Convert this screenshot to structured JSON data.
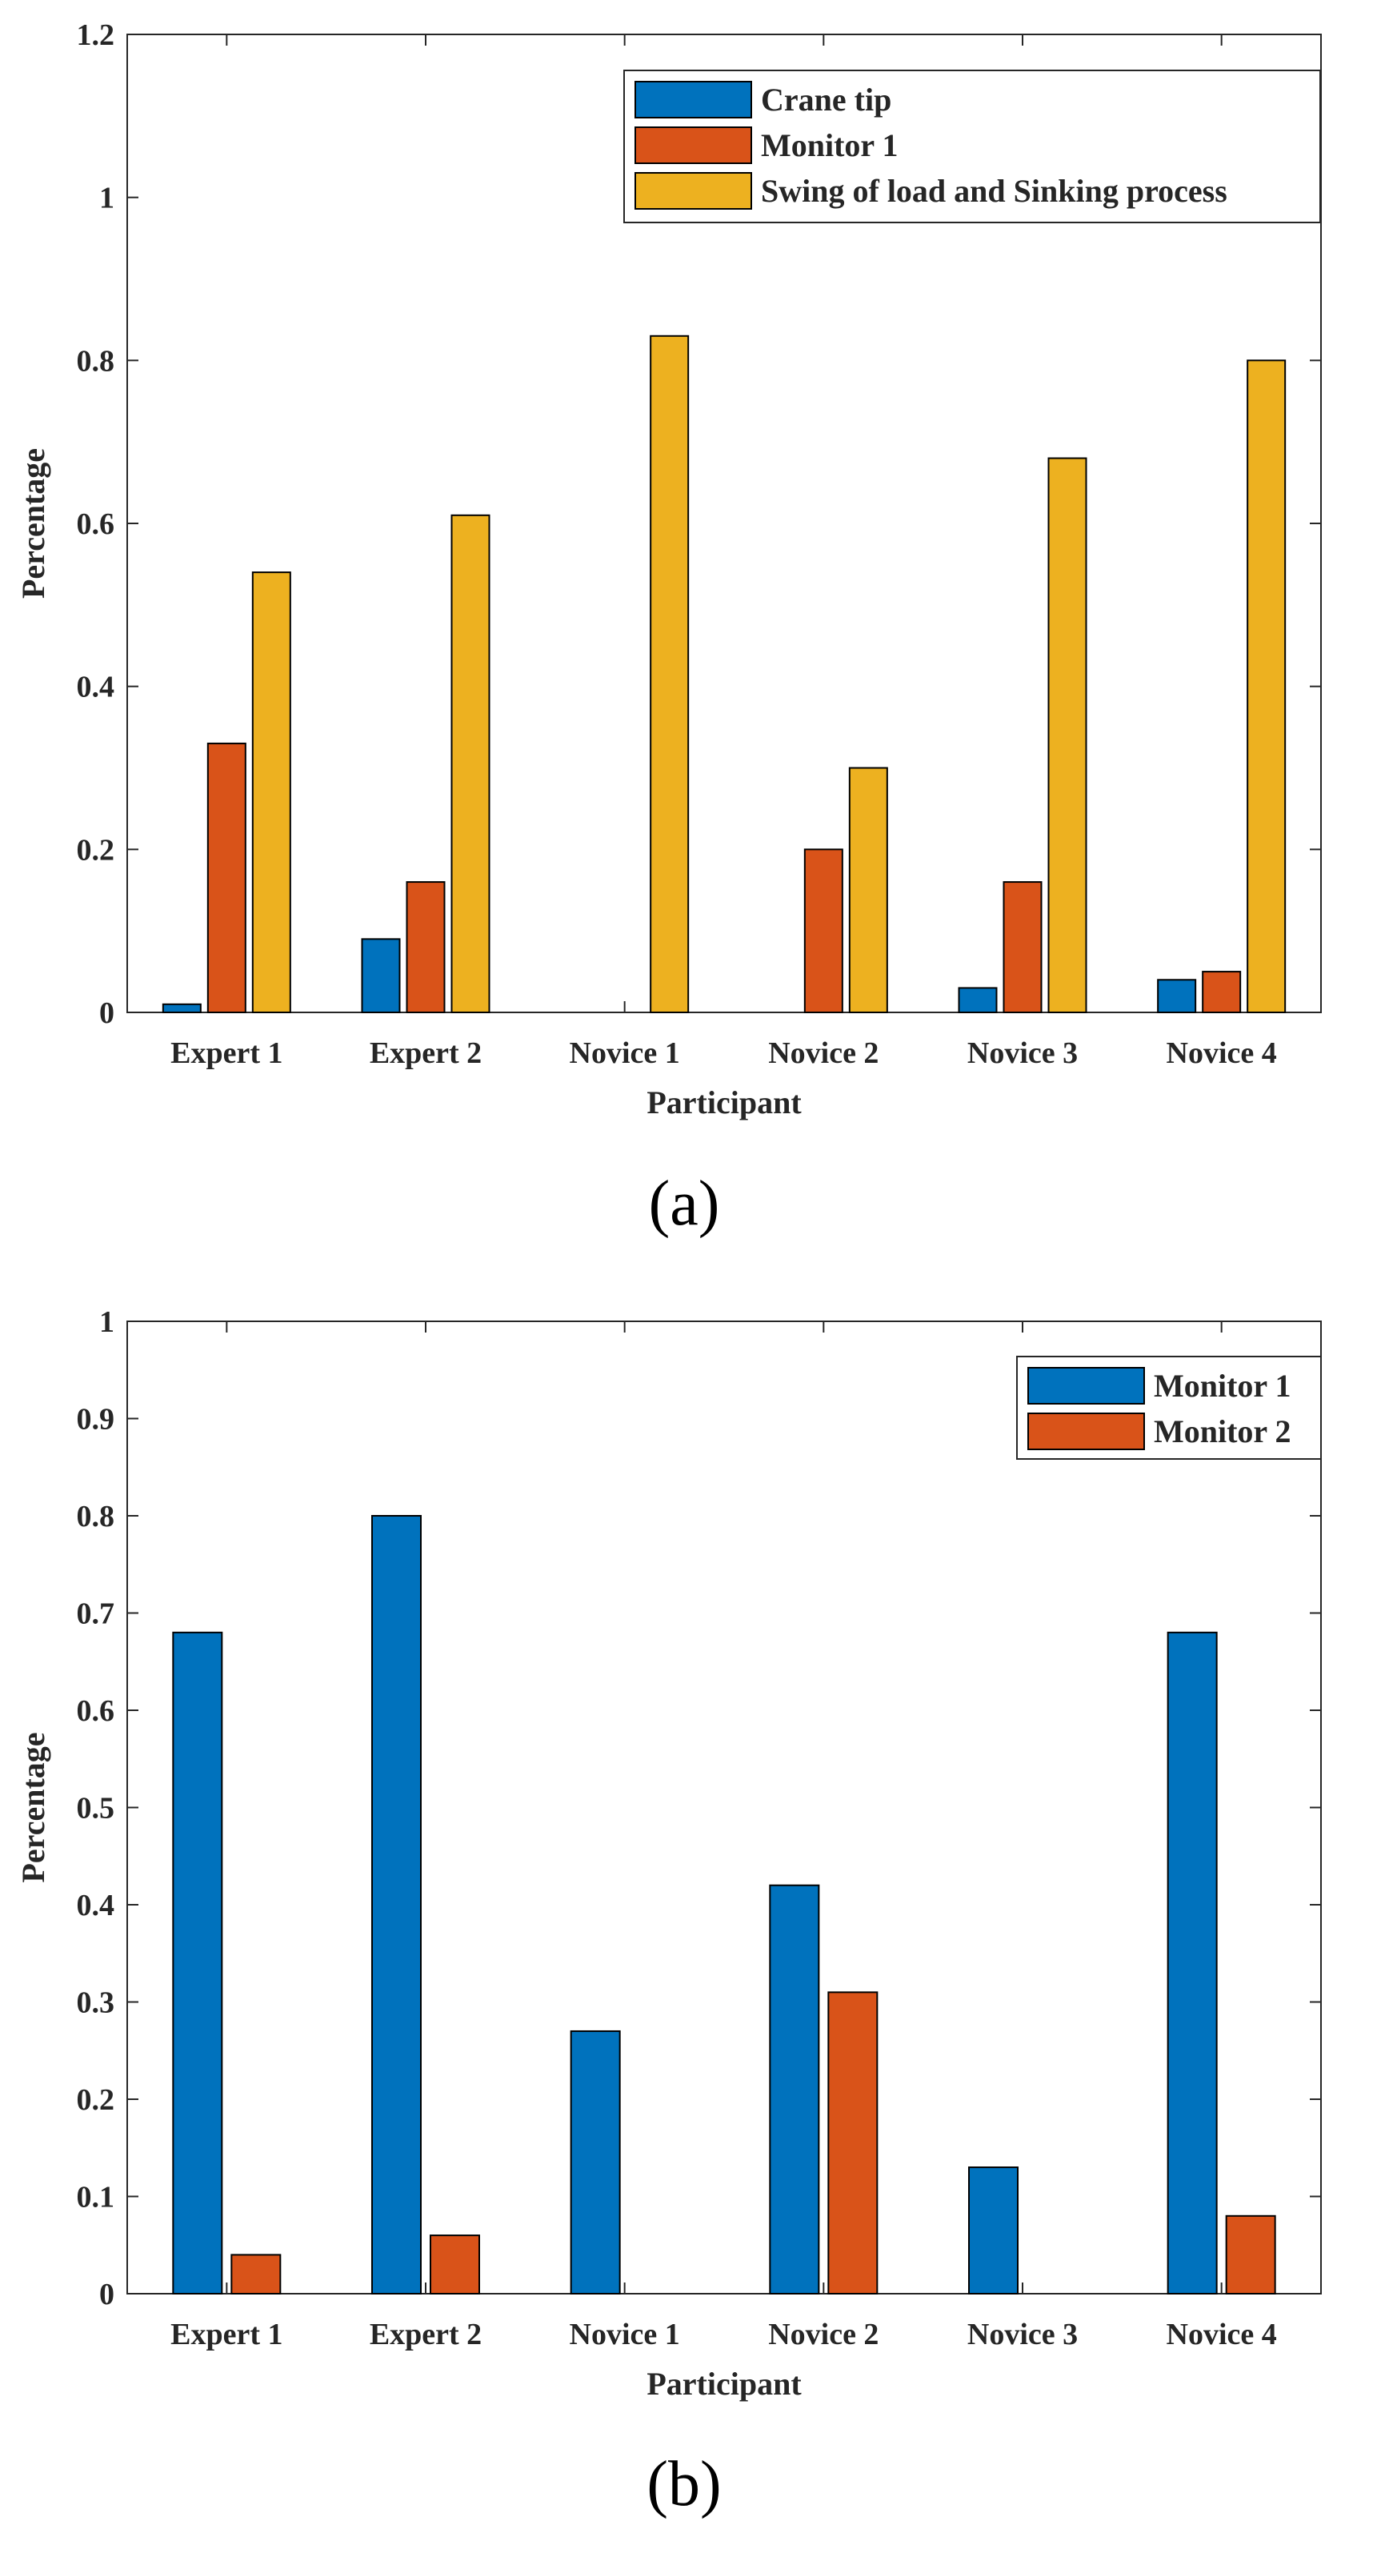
{
  "chart_data": [
    {
      "type": "bar",
      "caption": "(a)",
      "categories": [
        "Expert 1",
        "Expert 2",
        "Novice 1",
        "Novice 2",
        "Novice 3",
        "Novice 4"
      ],
      "series": [
        {
          "name": "Crane tip",
          "color": "#0072BD",
          "values": [
            0.01,
            0.09,
            0,
            0,
            0.03,
            0.04
          ]
        },
        {
          "name": "Monitor 1",
          "color": "#D95319",
          "values": [
            0.33,
            0.16,
            0,
            0.2,
            0.16,
            0.05
          ]
        },
        {
          "name": "Swing of load and Sinking process",
          "color": "#EDB120",
          "values": [
            0.54,
            0.61,
            0.83,
            0.3,
            0.68,
            0.8
          ]
        }
      ],
      "xlabel": "Participant",
      "ylabel": "Percentage",
      "ylim": [
        0,
        1.2
      ],
      "yticks": [
        0,
        0.2,
        0.4,
        0.6,
        0.8,
        1,
        1.2
      ],
      "ytick_labels": [
        "0",
        "0.2",
        "0.4",
        "0.6",
        "0.8",
        "1",
        "1.2"
      ],
      "legend": "top-right",
      "grid": false
    },
    {
      "type": "bar",
      "caption": "(b)",
      "categories": [
        "Expert 1",
        "Expert 2",
        "Novice 1",
        "Novice 2",
        "Novice 3",
        "Novice 4"
      ],
      "series": [
        {
          "name": "Monitor 1",
          "color": "#0072BD",
          "values": [
            0.68,
            0.8,
            0.27,
            0.42,
            0.13,
            0.68
          ]
        },
        {
          "name": "Monitor 2",
          "color": "#D95319",
          "values": [
            0.04,
            0.06,
            0,
            0.31,
            0,
            0.08
          ]
        }
      ],
      "xlabel": "Participant",
      "ylabel": "Percentage",
      "ylim": [
        0,
        1
      ],
      "yticks": [
        0,
        0.1,
        0.2,
        0.3,
        0.4,
        0.5,
        0.6,
        0.7,
        0.8,
        0.9,
        1
      ],
      "ytick_labels": [
        "0",
        "0.1",
        "0.2",
        "0.3",
        "0.4",
        "0.5",
        "0.6",
        "0.7",
        "0.8",
        "0.9",
        "1"
      ],
      "legend": "top-right",
      "grid": false
    }
  ]
}
